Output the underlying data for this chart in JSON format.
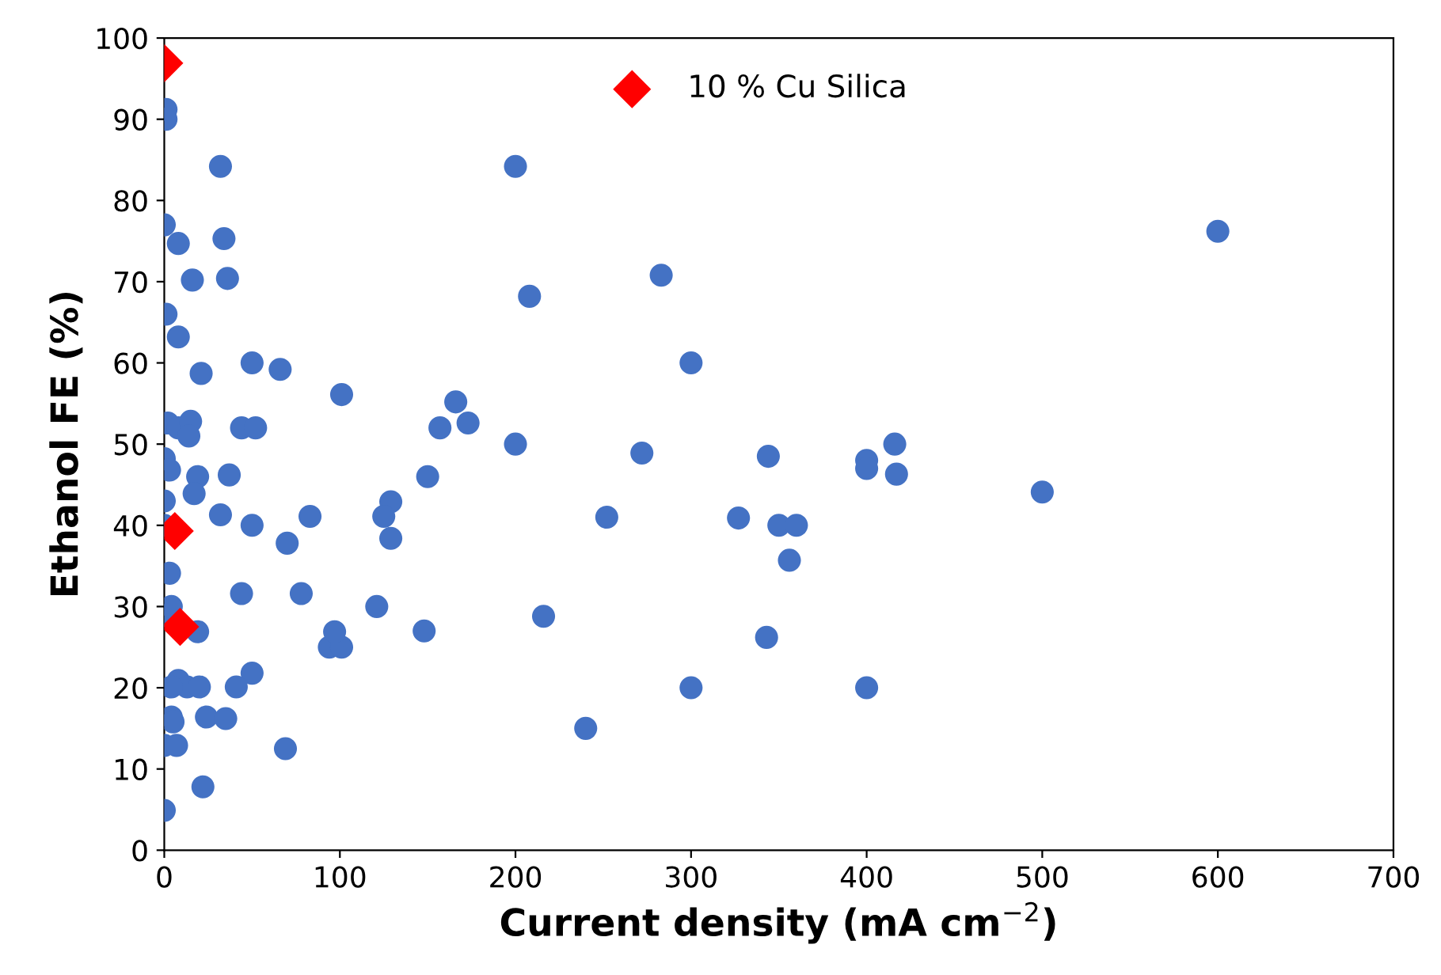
{
  "chart_data": {
    "type": "scatter",
    "xlabel": "Current density (mA cm$^{−2}$)",
    "ylabel": "Ethanol FE (%)",
    "xlim": [
      0,
      700
    ],
    "xticks": [
      0,
      100,
      200,
      300,
      400,
      500,
      600,
      700
    ],
    "ylim": [
      0,
      100
    ],
    "yticks": [
      0,
      10,
      20,
      30,
      40,
      50,
      60,
      70,
      80,
      90,
      100
    ],
    "grid": false,
    "legend": "top",
    "series": [
      {
        "color": "#4472c4",
        "marker": "circle",
        "x": [
          1,
          1,
          32,
          0,
          8,
          34,
          16,
          36,
          1,
          8,
          21,
          50,
          66,
          101,
          2,
          8,
          15,
          14,
          44,
          52,
          0,
          3,
          19,
          37,
          17,
          0,
          0,
          50,
          32,
          83,
          70,
          129,
          125,
          129,
          0,
          3,
          4,
          44,
          78,
          121,
          19,
          94,
          101,
          97,
          50,
          8,
          13,
          4,
          20,
          41,
          4,
          5,
          24,
          35,
          0,
          7,
          69,
          22,
          0,
          150,
          148,
          166,
          157,
          173,
          200,
          208,
          283,
          300,
          200,
          272,
          252,
          327,
          350,
          360,
          356,
          344,
          343,
          216,
          240,
          300,
          400,
          400,
          400,
          416,
          417,
          500,
          600
        ],
        "values": [
          91.2,
          90,
          84.2,
          77,
          74.7,
          75.3,
          70.2,
          70.4,
          66,
          63.2,
          58.7,
          60,
          59.2,
          56.1,
          52.6,
          52,
          52.8,
          51,
          52,
          52,
          48.2,
          46.8,
          46,
          46.2,
          43.9,
          43,
          40,
          40,
          41.3,
          41.1,
          37.8,
          42.9,
          41.1,
          38.4,
          28.9,
          34.1,
          30,
          31.6,
          31.6,
          30,
          26.9,
          25,
          25,
          26.9,
          21.8,
          20.9,
          20.1,
          20.1,
          20.1,
          20.1,
          16.4,
          15.8,
          16.4,
          16.2,
          12.9,
          12.9,
          12.5,
          7.8,
          4.9,
          46,
          27,
          55.2,
          52,
          52.6,
          84.2,
          68.2,
          70.8,
          60,
          50,
          48.9,
          41,
          40.9,
          40,
          40,
          35.7,
          48.5,
          26.2,
          28.8,
          15,
          20,
          20,
          48,
          47,
          50,
          46.3,
          44.1,
          76.2
        ]
      },
      {
        "name": "10 % Cu Silica",
        "color": "#ff0000",
        "marker": "diamond",
        "x": [
          0,
          6,
          9
        ],
        "values": [
          96.9,
          39.3,
          27.5
        ]
      }
    ]
  }
}
